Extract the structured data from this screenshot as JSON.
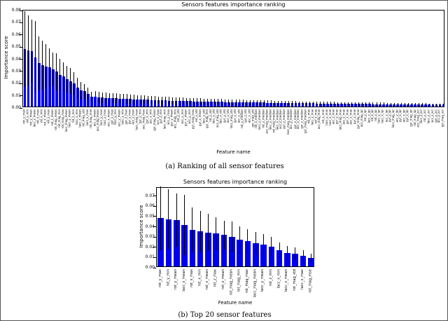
{
  "figure": {
    "captions": {
      "a": "(a) Ranking of all sensor features",
      "b": "(b) Top 20 sensor features"
    }
  },
  "chart_data": [
    {
      "type": "bar",
      "title": "Sensors features importance ranking",
      "xlabel": "Feature name",
      "ylabel": "Importance score",
      "ylim": [
        0,
        0.08
      ],
      "ytick_step": 0.01,
      "grid": false,
      "legend": "none",
      "bar_color": "#0000ee",
      "error_bars": true,
      "categories": [
        "rot_y_max",
        "rot_y_min",
        "rot_y_mean",
        "lacc_z_mean",
        "rot_x_max",
        "rot_x_min",
        "rot_x_mean",
        "rot_z_max",
        "rot_z_mean",
        "rot_mag_mean",
        "rot_mag_min",
        "rot_mag_max",
        "lacc_mag_mean",
        "lacc_y_mean",
        "rot_z_min",
        "lacc_x_min",
        "lacc_x_mean",
        "rot_mag_std",
        "lacc_x_max",
        "rot_mag_mse",
        "acc_z_mean",
        "acc_mag_mean",
        "lacc_y_max",
        "lacc_z_max",
        "acc_x_mean",
        "gyr_y_max",
        "lacc_y_min",
        "acc_y_mean",
        "lacc_z_min",
        "gyr_x_max",
        "gyr_z_max",
        "acc_z_max",
        "lacc_mag_max",
        "gyr_y_min",
        "acc_mag_max",
        "gyr_x_min",
        "acc_z_min",
        "gyr_mag_mean",
        "acc_x_max",
        "gyr_z_min",
        "lacc_mag_min",
        "acc_y_max",
        "gyr_y_mean",
        "acc_mag_min",
        "rot_y_std",
        "acc_x_min",
        "gyr_x_mean",
        "acc_y_min",
        "gyr_mag_max",
        "rot_x_std",
        "gyr_z_mean",
        "lacc_z_std",
        "gyr_mag_min",
        "rot_z_std",
        "lacc_y_std",
        "acc_mag_std",
        "lacc_x_std",
        "gyr_y_std",
        "acc_z_std",
        "lacc_mag_std",
        "gyr_x_std",
        "acc_y_std",
        "rot_y_median",
        "gyr_z_std",
        "acc_x_std",
        "gyr_mag_std",
        "rot_x_median",
        "lacc_z_median",
        "rot_z_median",
        "acc_mag_median",
        "lacc_y_median",
        "rot_mag_median",
        "lacc_x_median",
        "acc_z_median",
        "gyr_y_median",
        "lacc_mag_median",
        "acc_y_median",
        "gyr_x_median",
        "acc_x_median",
        "gyr_z_median",
        "gyr_mag_median",
        "rot_y_mse",
        "lacc_z_mse",
        "rot_x_mse",
        "acc_mag_mse",
        "rot_z_mse",
        "lacc_y_mse",
        "lacc_x_mse",
        "acc_z_mse",
        "gyr_y_mse",
        "lacc_mag_mse",
        "acc_y_mse",
        "gyr_x_mse",
        "acc_x_mse",
        "gyr_z_mse",
        "gyr_mag_mse",
        "acc_mag_iqr",
        "rot_y_iqr",
        "lacc_z_iqr",
        "rot_x_iqr",
        "rot_z_iqr",
        "lacc_y_iqr",
        "lacc_x_iqr",
        "acc_z_iqr",
        "gyr_y_iqr",
        "lacc_mag_iqr",
        "acc_y_iqr",
        "gyr_x_iqr",
        "acc_x_iqr",
        "gyr_z_iqr",
        "gyr_mag_iqr",
        "rot_mag_iqr",
        "acc_mag_zcr",
        "lacc_z_zcr",
        "rot_y_zcr",
        "lacc_y_zcr",
        "acc_z_zcr",
        "gyr_y_zcr",
        "acc_y_zcr",
        "gyr_mag_zcr"
      ],
      "values": [
        0.047,
        0.046,
        0.0455,
        0.0405,
        0.0355,
        0.034,
        0.033,
        0.032,
        0.0305,
        0.0285,
        0.026,
        0.0245,
        0.0225,
        0.021,
        0.019,
        0.0155,
        0.013,
        0.0125,
        0.0105,
        0.008,
        0.0078,
        0.0076,
        0.0074,
        0.0072,
        0.007,
        0.0069,
        0.0067,
        0.0066,
        0.0064,
        0.0063,
        0.0061,
        0.006,
        0.0059,
        0.0058,
        0.0056,
        0.0055,
        0.0054,
        0.0053,
        0.0052,
        0.0051,
        0.005,
        0.0049,
        0.0048,
        0.0047,
        0.0046,
        0.0046,
        0.0045,
        0.0044,
        0.0043,
        0.0043,
        0.0042,
        0.0041,
        0.0041,
        0.004,
        0.0039,
        0.0039,
        0.0038,
        0.0037,
        0.0037,
        0.0036,
        0.0036,
        0.0035,
        0.0035,
        0.0034,
        0.0034,
        0.0033,
        0.0033,
        0.0032,
        0.0032,
        0.0031,
        0.0031,
        0.003,
        0.003,
        0.0029,
        0.0029,
        0.0028,
        0.0028,
        0.0028,
        0.0027,
        0.0027,
        0.0026,
        0.0026,
        0.0026,
        0.0025,
        0.0025,
        0.0025,
        0.0024,
        0.0024,
        0.0024,
        0.0023,
        0.0023,
        0.0023,
        0.0022,
        0.0022,
        0.0022,
        0.0021,
        0.0021,
        0.0021,
        0.0021,
        0.002,
        0.002,
        0.002,
        0.002,
        0.0019,
        0.0019,
        0.0019,
        0.0019,
        0.0018,
        0.0018,
        0.0018,
        0.0018,
        0.0017,
        0.0017,
        0.0017,
        0.0017,
        0.0016,
        0.0016,
        0.0016,
        0.0016,
        0.0015
      ],
      "errors": [
        0.031,
        0.029,
        0.026,
        0.0295,
        0.022,
        0.02,
        0.018,
        0.016,
        0.014,
        0.015,
        0.013,
        0.012,
        0.011,
        0.0105,
        0.0095,
        0.008,
        0.007,
        0.006,
        0.005,
        0.004,
        0.0047,
        0.0046,
        0.0044,
        0.0043,
        0.0042,
        0.0041,
        0.004,
        0.004,
        0.0038,
        0.0038,
        0.0037,
        0.0036,
        0.0035,
        0.0035,
        0.0034,
        0.0033,
        0.0032,
        0.0032,
        0.0031,
        0.0031,
        0.003,
        0.0029,
        0.0029,
        0.0028,
        0.0028,
        0.0028,
        0.0027,
        0.0026,
        0.0026,
        0.0026,
        0.0025,
        0.0025,
        0.0025,
        0.0024,
        0.0023,
        0.0023,
        0.0023,
        0.0022,
        0.0022,
        0.0022,
        0.0022,
        0.0021,
        0.0021,
        0.002,
        0.002,
        0.002,
        0.002,
        0.0019,
        0.0019,
        0.0019,
        0.0019,
        0.0018,
        0.0018,
        0.0017,
        0.0017,
        0.0017,
        0.0017,
        0.0017,
        0.0016,
        0.0016,
        0.0016,
        0.0016,
        0.0016,
        0.0015,
        0.0015,
        0.0015,
        0.0014,
        0.0014,
        0.0014,
        0.0014,
        0.0014,
        0.0014,
        0.0013,
        0.0013,
        0.0013,
        0.0013,
        0.0013,
        0.0013,
        0.0013,
        0.0012,
        0.0012,
        0.0012,
        0.0012,
        0.0011,
        0.0011,
        0.0011,
        0.0011,
        0.0011,
        0.0011,
        0.0011,
        0.0011,
        0.001,
        0.001,
        0.001,
        0.001,
        0.001,
        0.001,
        0.001,
        0.001,
        0.0009
      ]
    },
    {
      "type": "bar",
      "title": "Sensors features importance ranking",
      "xlabel": "Feature name",
      "ylabel": "Importance score",
      "ylim": [
        0,
        0.078
      ],
      "ytick_step": 0.01,
      "grid": false,
      "legend": "none",
      "bar_color": "#0000ee",
      "error_bars": true,
      "categories": [
        "rot_y_max",
        "rot_y_min",
        "rot_y_mean",
        "lacc_z_mean",
        "rot_x_max",
        "rot_x_min",
        "rot_x_mean",
        "rot_z_max",
        "rot_z_mean",
        "rot_mag_mean",
        "rot_mag_min",
        "rot_mag_max",
        "lacc_mag_mean",
        "lacc_y_mean",
        "rot_z_min",
        "lacc_x_min",
        "lacc_x_mean",
        "rot_mag_std",
        "lacc_x_max",
        "rot_mag_mse"
      ],
      "values": [
        0.047,
        0.046,
        0.0455,
        0.0405,
        0.0355,
        0.034,
        0.033,
        0.032,
        0.0305,
        0.0285,
        0.026,
        0.0245,
        0.0225,
        0.021,
        0.019,
        0.0155,
        0.013,
        0.0125,
        0.0105,
        0.008
      ],
      "errors": [
        0.031,
        0.029,
        0.026,
        0.0295,
        0.022,
        0.02,
        0.018,
        0.016,
        0.014,
        0.015,
        0.013,
        0.012,
        0.011,
        0.0105,
        0.0095,
        0.008,
        0.007,
        0.006,
        0.005,
        0.004
      ]
    }
  ]
}
